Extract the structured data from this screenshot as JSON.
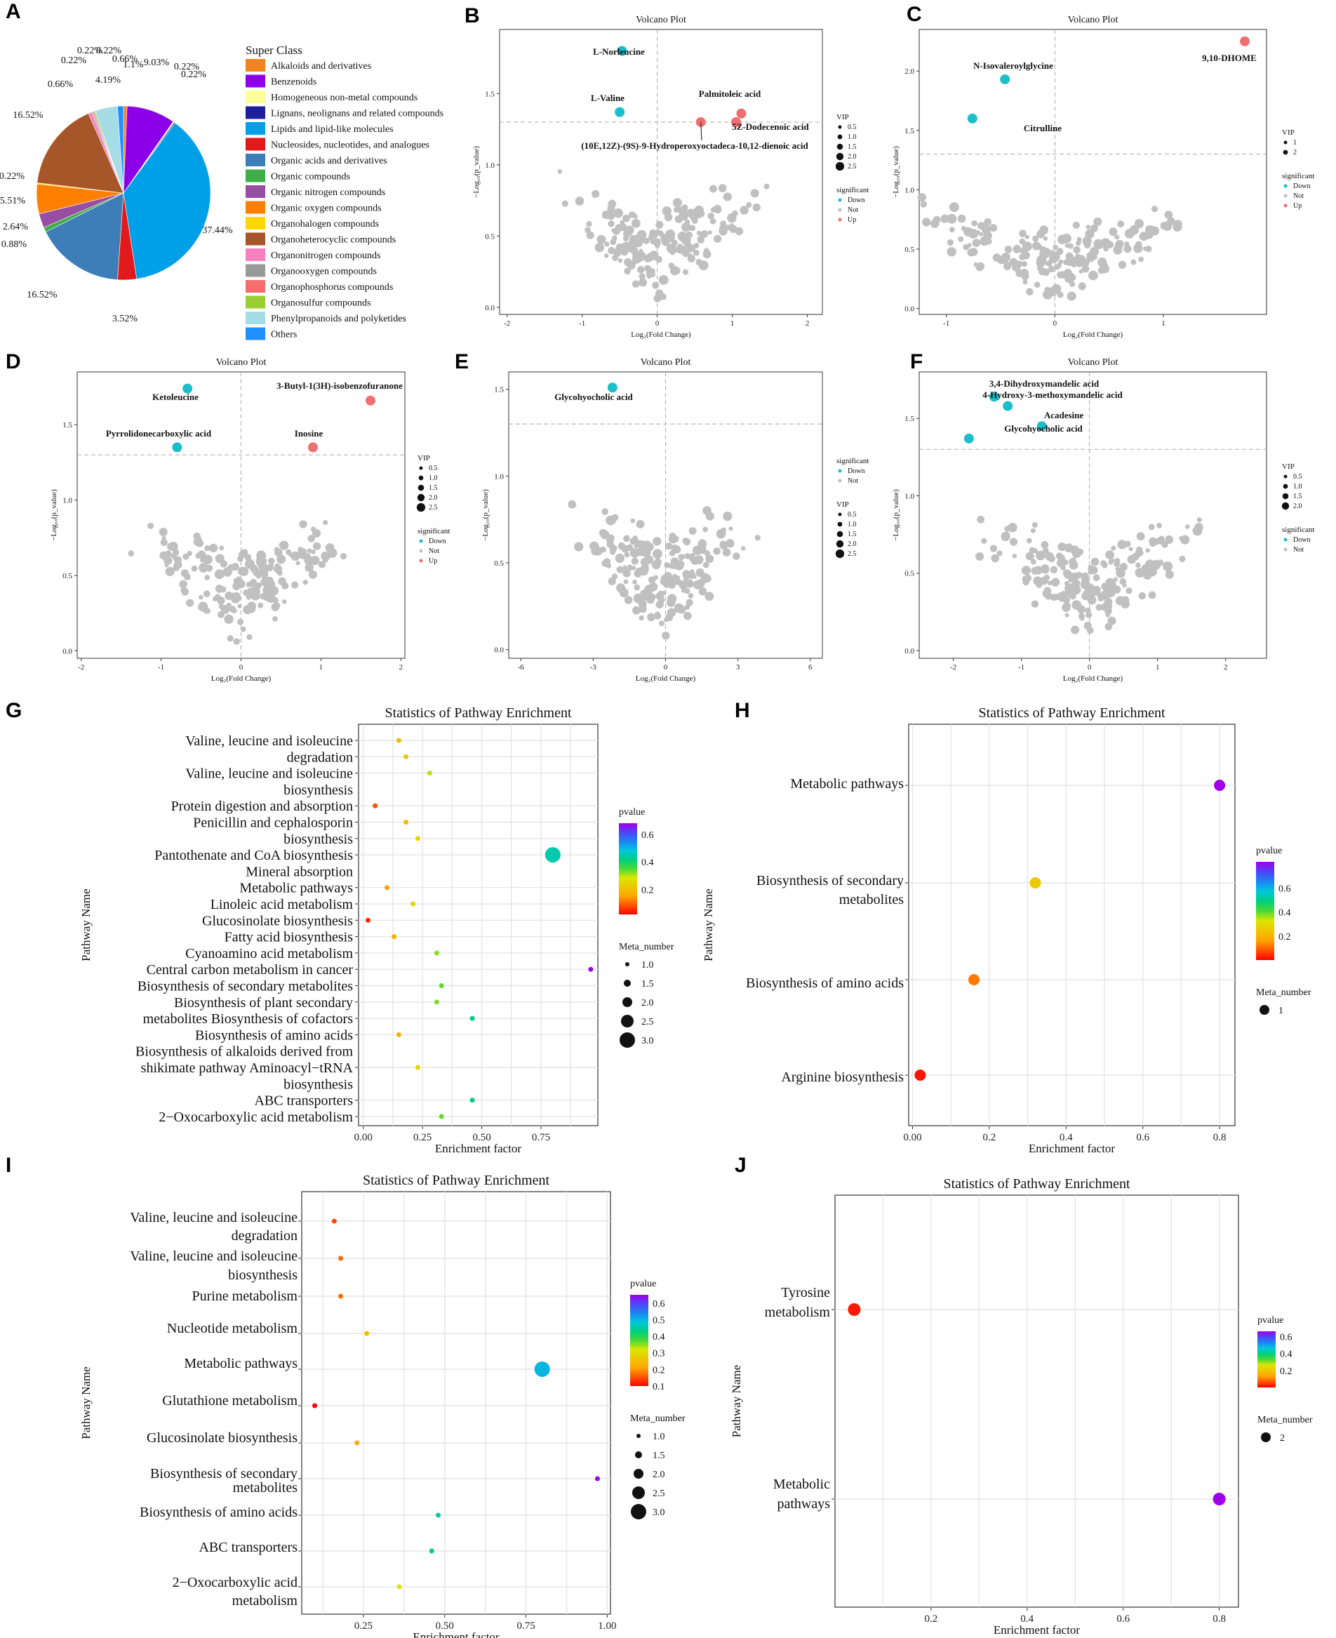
{
  "panels": {
    "A": "A",
    "B": "B",
    "C": "C",
    "D": "D",
    "E": "E",
    "F": "F",
    "G": "G",
    "H": "H",
    "I": "I",
    "J": "J"
  },
  "chart_data": [
    {
      "id": "A",
      "type": "pie",
      "legend_title": "Super Class",
      "categories": [
        "Alkaloids and derivatives",
        "Benzenoids",
        "Homogeneous non-metal compounds",
        "Lignans, neolignans and related compounds",
        "Lipids and lipid-like molecules",
        "Nucleosides, nucleotides, and analogues",
        "Organic acids and derivatives",
        "Organic compounds",
        "Organic nitrogen compounds",
        "Organic oxygen compounds",
        "Organohalogen compounds",
        "Organoheterocyclic compounds",
        "Organonitrogen compounds",
        "Organooxygen compounds",
        "Organophosphorus compounds",
        "Organosulfur compounds",
        "Phenylpropanoids and polyketides",
        "Others"
      ],
      "colors": [
        "#F58220",
        "#8B00E8",
        "#FFFF99",
        "#1F1F9E",
        "#00A0E9",
        "#E31A1C",
        "#3D7DB8",
        "#3FAE49",
        "#984EA3",
        "#FF7F00",
        "#FFD700",
        "#A65628",
        "#F781BF",
        "#999999",
        "#F46E6E",
        "#9ACD32",
        "#A6DCE6",
        "#1E90FF"
      ],
      "values": [
        0.66,
        9.03,
        0.22,
        0.22,
        37.44,
        3.52,
        16.52,
        0.88,
        2.64,
        5.51,
        0.22,
        16.52,
        0.66,
        0.22,
        0.22,
        0.22,
        4.19,
        1.1
      ],
      "labels": [
        "0.66%",
        "9.03%",
        "0.22%",
        "0.22%",
        "37.44%",
        "3.52%",
        "16.52%",
        "0.88%",
        "2.64%",
        "5.51%",
        "0.22%",
        "16.52%",
        "0.66%",
        "0.22%",
        "0.22%",
        "0.22%",
        "4.19%",
        "1.1%"
      ]
    },
    {
      "id": "B",
      "type": "scatter",
      "title": "Volcano Plot",
      "xlabel": "Log₂(Fold Change)",
      "ylabel": "−Log₁₀(p_value)",
      "xlim": [
        -2.1,
        2.2
      ],
      "ylim": [
        -0.05,
        1.95
      ],
      "xticks": [
        -2,
        -1,
        0,
        1,
        2
      ],
      "yticks": [
        0.0,
        0.5,
        1.0,
        1.5
      ],
      "threshold_y": 1.3,
      "seed": 11,
      "legend_size_title": "VIP",
      "size_labels": [
        "0.5",
        "1.0",
        "1.5",
        "2.0",
        "2.5"
      ],
      "legend_color_title": "significant",
      "color_labels": [
        "Down",
        "Not",
        "Up"
      ],
      "highlighted": [
        {
          "label": "L-Norleucine",
          "x": -0.47,
          "y": 1.8,
          "group": "Down"
        },
        {
          "label": "L-Valine",
          "x": -0.5,
          "y": 1.37,
          "group": "Down"
        },
        {
          "label": "Palmitoleic acid",
          "x": 1.12,
          "y": 1.36,
          "group": "Up"
        },
        {
          "label": "5Z-Dodecenoic acid",
          "x": 1.05,
          "y": 1.3,
          "group": "Up"
        },
        {
          "label": "(10E,12Z)-(9S)-9-Hydroperoxyoctadeca-10,12-dienoic acid",
          "x": 0.58,
          "y": 1.3,
          "group": "Up"
        }
      ]
    },
    {
      "id": "C",
      "type": "scatter",
      "title": "Volcano Plot",
      "xlabel": "Log₂(Fold Change)",
      "ylabel": "−Log₁₀(p_value)",
      "xlim": [
        -1.25,
        1.95
      ],
      "ylim": [
        -0.05,
        2.35
      ],
      "xticks": [
        -1,
        0,
        1
      ],
      "yticks": [
        0.0,
        0.5,
        1.0,
        1.5,
        2.0
      ],
      "threshold_y": 1.3,
      "seed": 23,
      "legend_size_title": "VIP",
      "size_labels": [
        "1",
        "2"
      ],
      "legend_color_title": "significant",
      "color_labels": [
        "Down",
        "Not",
        "Up"
      ],
      "highlighted": [
        {
          "label": "9,10-DHOME",
          "x": 1.75,
          "y": 2.25,
          "group": "Up"
        },
        {
          "label": "N-Isovaleroylglycine",
          "x": -0.46,
          "y": 1.93,
          "group": "Down"
        },
        {
          "label": "Citrulline",
          "x": -0.76,
          "y": 1.6,
          "group": "Down"
        }
      ]
    },
    {
      "id": "D",
      "type": "scatter",
      "title": "Volcano Plot",
      "xlabel": "Log₂(Fold Change)",
      "ylabel": "−Log₁₀(p_value)",
      "xlim": [
        -2.05,
        2.05
      ],
      "ylim": [
        -0.05,
        1.85
      ],
      "xticks": [
        -2,
        -1,
        0,
        1,
        2
      ],
      "yticks": [
        0.0,
        0.5,
        1.0,
        1.5
      ],
      "threshold_y": 1.3,
      "seed": 37,
      "legend_size_title": "VIP",
      "size_labels": [
        "0.5",
        "1.0",
        "1.5",
        "2.0",
        "2.5"
      ],
      "legend_color_title": "significant",
      "color_labels": [
        "Down",
        "Not",
        "Up"
      ],
      "highlighted": [
        {
          "label": "Ketoleucine",
          "x": -0.67,
          "y": 1.74,
          "group": "Down"
        },
        {
          "label": "3-Butyl-1(3H)-isobenzofuranone",
          "x": 1.62,
          "y": 1.66,
          "group": "Up"
        },
        {
          "label": "Pyrrolidonecarboxylic acid",
          "x": -0.8,
          "y": 1.35,
          "group": "Down"
        },
        {
          "label": "Inosine",
          "x": 0.9,
          "y": 1.35,
          "group": "Up"
        }
      ]
    },
    {
      "id": "E",
      "type": "scatter",
      "title": "Volcano Plot",
      "xlabel": "Log₂(Fold Change)",
      "ylabel": "−Log₁₀(p_value)",
      "xlim": [
        -6.5,
        6.5
      ],
      "ylim": [
        -0.05,
        1.6
      ],
      "xticks": [
        -6,
        -3,
        0,
        3,
        6
      ],
      "yticks": [
        0.0,
        0.5,
        1.0,
        1.5
      ],
      "threshold_y": 1.3,
      "seed": 53,
      "legend_color_title": "significant",
      "color_labels": [
        "Down",
        "Not"
      ],
      "legend_size_title": "VIP",
      "size_labels": [
        "0.5",
        "1.0",
        "1.5",
        "2.0",
        "2.5"
      ],
      "highlighted": [
        {
          "label": "Glycohyocholic acid",
          "x": -2.2,
          "y": 1.51,
          "group": "Down"
        }
      ]
    },
    {
      "id": "F",
      "type": "scatter",
      "title": "Volcano Plot",
      "xlabel": "Log₂(Fold Change)",
      "ylabel": "−Log₁₀(p_value)",
      "xlim": [
        -2.5,
        2.6
      ],
      "ylim": [
        -0.05,
        1.8
      ],
      "xticks": [
        -2,
        -1,
        0,
        1,
        2
      ],
      "yticks": [
        0.0,
        0.5,
        1.0,
        1.5
      ],
      "threshold_y": 1.3,
      "seed": 71,
      "legend_size_title": "VIP",
      "size_labels": [
        "0.5",
        "1.0",
        "1.5",
        "2.0"
      ],
      "legend_color_title": "significant",
      "color_labels": [
        "Down",
        "Not"
      ],
      "highlighted": [
        {
          "label": "3,4-Dihydroxymandelic acid",
          "x": -1.4,
          "y": 1.64,
          "group": "Down"
        },
        {
          "label": "4-Hydroxy-3-methoxymandelic acid",
          "x": -1.2,
          "y": 1.58,
          "group": "Down"
        },
        {
          "label": "Acadesine",
          "x": -0.7,
          "y": 1.45,
          "group": "Down"
        },
        {
          "label": "Glycohyocholic acid",
          "x": -1.77,
          "y": 1.37,
          "group": "Down"
        }
      ]
    },
    {
      "id": "G",
      "type": "scatter",
      "title": "Statistics of Pathway Enrichment",
      "xlabel": "Enrichment factor",
      "ylabel": "Pathway Name",
      "xlim": [
        -0.02,
        0.99
      ],
      "xticks": [
        0.0,
        0.25,
        0.5,
        0.75
      ],
      "categories": [
        "Valine, leucine and isoleucine",
        "degradation",
        "Valine, leucine and isoleucine",
        "biosynthesis",
        "Protein digestion and absorption",
        "Penicillin and cephalosporin",
        "biosynthesis",
        "Pantothenate and CoA biosynthesis",
        "Mineral absorption",
        "Metabolic pathways",
        "Linoleic acid metabolism",
        "Glucosinolate biosynthesis",
        "Fatty acid biosynthesis",
        "Cyanoamino acid metabolism",
        "Central carbon metabolism in cancer",
        "Biosynthesis of secondary metabolites",
        "Biosynthesis of plant secondary",
        "metabolites Biosynthesis of cofactors",
        "Biosynthesis of amino acids",
        "Biosynthesis of alkaloids derived from",
        "shikimate pathway Aminoacyl−tRNA",
        "biosynthesis",
        "ABC transporters",
        "2−Oxocarboxylic acid metabolism"
      ],
      "x": [
        0.15,
        0.18,
        0.28,
        0.05,
        0.18,
        0.23,
        0.8,
        0.1,
        0.21,
        0.02,
        0.13,
        0.31,
        0.96,
        0.33,
        0.31,
        0.46,
        0.15,
        0.23,
        0.46,
        0.33
      ],
      "rows": [
        0,
        1,
        2,
        4,
        5,
        6,
        7,
        9,
        10,
        11,
        12,
        13,
        14,
        15,
        16,
        17,
        18,
        20,
        22,
        23
      ],
      "pvalue": [
        0.2,
        0.22,
        0.3,
        0.08,
        0.2,
        0.25,
        0.45,
        0.15,
        0.25,
        0.05,
        0.18,
        0.32,
        0.68,
        0.34,
        0.33,
        0.42,
        0.18,
        0.25,
        0.42,
        0.34
      ],
      "meta_number": [
        1,
        1,
        1,
        1,
        1,
        1,
        3,
        1,
        1,
        1,
        1,
        1,
        1,
        1,
        1,
        1,
        1,
        1,
        1,
        1
      ],
      "legend_color_title": "pvalue",
      "color_ticks": [
        "0.6",
        "0.4",
        "0.2"
      ],
      "color_range": [
        0.02,
        0.68
      ],
      "legend_size_title": "Meta_number",
      "size_labels": [
        "1.0",
        "1.5",
        "2.0",
        "2.5",
        "3.0"
      ]
    },
    {
      "id": "H",
      "type": "scatter",
      "title": "Statistics of Pathway Enrichment",
      "xlabel": "Enrichment factor",
      "ylabel": "Pathway Name",
      "xlim": [
        -0.01,
        0.84
      ],
      "xticks": [
        0.0,
        0.2,
        0.4,
        0.6,
        0.8
      ],
      "categories": [
        "Metabolic pathways",
        "Biosynthesis of secondary",
        "metabolites",
        "Biosynthesis of amino acids",
        "Arginine biosynthesis"
      ],
      "x": [
        0.8,
        0.32,
        0.16,
        0.02
      ],
      "pvalue": [
        0.82,
        0.25,
        0.12,
        0.02
      ],
      "meta_number": [
        1,
        1,
        1,
        1
      ],
      "legend_color_title": "pvalue",
      "color_ticks": [
        "0.6",
        "0.4",
        "0.2"
      ],
      "color_range": [
        0.0,
        0.82
      ],
      "legend_size_title": "Meta_number",
      "size_labels": [
        "1"
      ]
    },
    {
      "id": "I",
      "type": "scatter",
      "title": "Statistics of Pathway Enrichment",
      "xlabel": "Enrichment factor",
      "ylabel": "Pathway Name",
      "xlim": [
        0.06,
        1.01
      ],
      "xticks": [
        0.25,
        0.5,
        0.75,
        1.0
      ],
      "categories": [
        "Valine, leucine and isoleucine",
        "degradation",
        "Valine, leucine and isoleucine",
        "biosynthesis",
        "Purine metabolism",
        "Nucleotide metabolism",
        "Metabolic pathways",
        "Glutathione metabolism",
        "Glucosinolate biosynthesis",
        "Biosynthesis of secondary",
        "metabolites",
        "Biosynthesis of amino acids",
        "ABC transporters",
        "2−Oxocarboxylic acid",
        "metabolism"
      ],
      "x": [
        0.16,
        0.18,
        0.18,
        0.26,
        0.8,
        0.1,
        0.23,
        0.97,
        0.48,
        0.46,
        0.36
      ],
      "pvalue": [
        0.15,
        0.17,
        0.17,
        0.25,
        0.5,
        0.1,
        0.22,
        0.65,
        0.45,
        0.43,
        0.32
      ],
      "meta_number": [
        1,
        1,
        1,
        1,
        3,
        1,
        1,
        1,
        1,
        1,
        1
      ],
      "legend_color_title": "pvalue",
      "color_ticks": [
        "0.6",
        "0.5",
        "0.4",
        "0.3",
        "0.2",
        "0.1"
      ],
      "color_range": [
        0.1,
        0.65
      ],
      "legend_size_title": "Meta_number",
      "size_labels": [
        "1.0",
        "1.5",
        "2.0",
        "2.5",
        "3.0"
      ]
    },
    {
      "id": "J",
      "type": "scatter",
      "title": "Statistics of Pathway Enrichment",
      "xlabel": "Enrichment factor",
      "ylabel": "Pathway Name",
      "xlim": [
        0.0,
        0.84
      ],
      "xticks": [
        0.2,
        0.4,
        0.6,
        0.8
      ],
      "categories": [
        "Tyrosine",
        "metabolism",
        "Metabolic",
        "pathways"
      ],
      "x": [
        0.04,
        0.8
      ],
      "pvalue": [
        0.02,
        0.66
      ],
      "meta_number": [
        2,
        2
      ],
      "legend_color_title": "pvalue",
      "color_ticks": [
        "0.6",
        "0.4",
        "0.2"
      ],
      "color_range": [
        0.0,
        0.66
      ],
      "legend_size_title": "Meta_number",
      "size_labels": [
        "2"
      ]
    }
  ]
}
